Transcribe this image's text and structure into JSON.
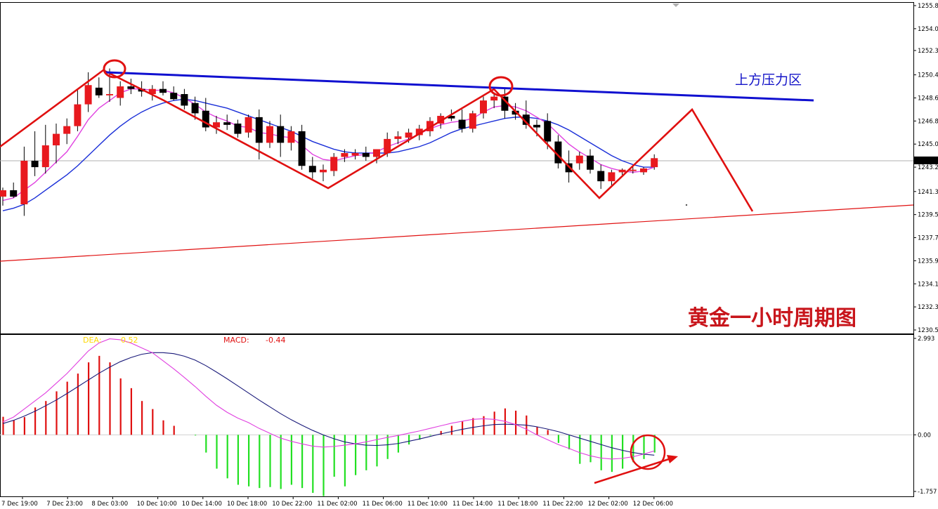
{
  "chart_data": {
    "type": "candlestick",
    "price_axis": {
      "ylim": [
        1230.5,
        1255.8
      ],
      "ticks": [
        "1255.8",
        "1254.0",
        "1252.3",
        "1250.4",
        "1248.6",
        "1246.8",
        "1245.0",
        "1243.2",
        "1241.3",
        "1239.5",
        "1237.7",
        "1235.9",
        "1234.1",
        "1232.3",
        "1230.5"
      ],
      "current_price": "1243.7"
    },
    "macd_axis": {
      "ylim": [
        -1.757,
        2.993
      ],
      "ticks": [
        "2.993",
        "0.00",
        "-1.757"
      ]
    },
    "time_labels": [
      "7 Dec 19:00",
      "7 Dec 23:00",
      "8 Dec 03:00",
      "10 Dec 10:00",
      "10 Dec 14:00",
      "10 Dec 18:00",
      "10 Dec 22:00",
      "11 Dec 02:00",
      "11 Dec 06:00",
      "11 Dec 10:00",
      "11 Dec 14:00",
      "11 Dec 18:00",
      "11 Dec 22:00",
      "12 Dec 02:00",
      "12 Dec 06:00"
    ],
    "candles": [
      {
        "o": 1240.9,
        "h": 1241.6,
        "l": 1240.2,
        "c": 1241.4
      },
      {
        "o": 1241.4,
        "h": 1242.0,
        "l": 1240.8,
        "c": 1240.9
      },
      {
        "o": 1240.3,
        "h": 1244.8,
        "l": 1239.4,
        "c": 1243.7
      },
      {
        "o": 1243.7,
        "h": 1246.0,
        "l": 1242.5,
        "c": 1243.2
      },
      {
        "o": 1243.2,
        "h": 1246.5,
        "l": 1242.7,
        "c": 1244.9
      },
      {
        "o": 1244.9,
        "h": 1246.6,
        "l": 1243.5,
        "c": 1245.8
      },
      {
        "o": 1245.8,
        "h": 1247.0,
        "l": 1245.0,
        "c": 1246.4
      },
      {
        "o": 1246.4,
        "h": 1249.2,
        "l": 1246.0,
        "c": 1248.1
      },
      {
        "o": 1248.1,
        "h": 1250.6,
        "l": 1247.5,
        "c": 1249.6
      },
      {
        "o": 1249.4,
        "h": 1250.2,
        "l": 1248.6,
        "c": 1248.8
      },
      {
        "o": 1248.8,
        "h": 1250.9,
        "l": 1248.3,
        "c": 1248.9
      },
      {
        "o": 1248.6,
        "h": 1249.9,
        "l": 1248.0,
        "c": 1249.5
      },
      {
        "o": 1249.5,
        "h": 1250.1,
        "l": 1248.9,
        "c": 1249.3
      },
      {
        "o": 1249.3,
        "h": 1249.9,
        "l": 1248.7,
        "c": 1249.1
      },
      {
        "o": 1248.9,
        "h": 1249.6,
        "l": 1248.4,
        "c": 1249.3
      },
      {
        "o": 1249.3,
        "h": 1249.9,
        "l": 1248.8,
        "c": 1249.0
      },
      {
        "o": 1249.0,
        "h": 1249.5,
        "l": 1248.4,
        "c": 1248.5
      },
      {
        "o": 1248.9,
        "h": 1249.3,
        "l": 1247.7,
        "c": 1248.0
      },
      {
        "o": 1248.2,
        "h": 1248.7,
        "l": 1246.9,
        "c": 1247.4
      },
      {
        "o": 1247.6,
        "h": 1248.6,
        "l": 1246.0,
        "c": 1246.3
      },
      {
        "o": 1246.3,
        "h": 1247.2,
        "l": 1245.8,
        "c": 1246.7
      },
      {
        "o": 1246.7,
        "h": 1247.3,
        "l": 1246.1,
        "c": 1246.5
      },
      {
        "o": 1246.6,
        "h": 1246.9,
        "l": 1245.5,
        "c": 1245.8
      },
      {
        "o": 1245.9,
        "h": 1247.3,
        "l": 1245.5,
        "c": 1247.1
      },
      {
        "o": 1247.1,
        "h": 1247.7,
        "l": 1243.8,
        "c": 1245.1
      },
      {
        "o": 1245.1,
        "h": 1246.8,
        "l": 1244.7,
        "c": 1246.4
      },
      {
        "o": 1246.4,
        "h": 1247.3,
        "l": 1244.0,
        "c": 1245.1
      },
      {
        "o": 1245.1,
        "h": 1246.4,
        "l": 1244.5,
        "c": 1246.0
      },
      {
        "o": 1246.0,
        "h": 1246.5,
        "l": 1243.0,
        "c": 1243.3
      },
      {
        "o": 1243.3,
        "h": 1244.0,
        "l": 1242.3,
        "c": 1242.8
      },
      {
        "o": 1242.8,
        "h": 1243.4,
        "l": 1242.1,
        "c": 1243.0
      },
      {
        "o": 1242.9,
        "h": 1244.3,
        "l": 1242.5,
        "c": 1244.0
      },
      {
        "o": 1244.0,
        "h": 1244.6,
        "l": 1243.6,
        "c": 1244.3
      },
      {
        "o": 1244.1,
        "h": 1244.6,
        "l": 1243.8,
        "c": 1244.3
      },
      {
        "o": 1244.3,
        "h": 1244.8,
        "l": 1243.7,
        "c": 1244.0
      },
      {
        "o": 1244.0,
        "h": 1244.6,
        "l": 1243.5,
        "c": 1244.6
      },
      {
        "o": 1244.3,
        "h": 1245.9,
        "l": 1244.0,
        "c": 1245.4
      },
      {
        "o": 1245.4,
        "h": 1246.0,
        "l": 1245.0,
        "c": 1245.6
      },
      {
        "o": 1245.5,
        "h": 1246.2,
        "l": 1245.1,
        "c": 1245.9
      },
      {
        "o": 1245.7,
        "h": 1246.5,
        "l": 1245.3,
        "c": 1246.2
      },
      {
        "o": 1246.0,
        "h": 1247.1,
        "l": 1245.6,
        "c": 1246.8
      },
      {
        "o": 1246.6,
        "h": 1247.4,
        "l": 1246.2,
        "c": 1247.2
      },
      {
        "o": 1247.2,
        "h": 1247.7,
        "l": 1246.8,
        "c": 1247.0
      },
      {
        "o": 1246.9,
        "h": 1247.7,
        "l": 1245.9,
        "c": 1246.2
      },
      {
        "o": 1246.2,
        "h": 1247.6,
        "l": 1245.9,
        "c": 1247.4
      },
      {
        "o": 1247.4,
        "h": 1248.7,
        "l": 1247.0,
        "c": 1248.4
      },
      {
        "o": 1248.4,
        "h": 1249.0,
        "l": 1247.8,
        "c": 1248.7
      },
      {
        "o": 1248.7,
        "h": 1249.3,
        "l": 1247.0,
        "c": 1247.6
      },
      {
        "o": 1247.6,
        "h": 1248.2,
        "l": 1246.9,
        "c": 1247.3
      },
      {
        "o": 1247.3,
        "h": 1248.4,
        "l": 1246.2,
        "c": 1246.5
      },
      {
        "o": 1246.5,
        "h": 1246.9,
        "l": 1245.6,
        "c": 1246.3
      },
      {
        "o": 1246.8,
        "h": 1247.4,
        "l": 1244.6,
        "c": 1245.2
      },
      {
        "o": 1245.2,
        "h": 1245.7,
        "l": 1243.1,
        "c": 1243.5
      },
      {
        "o": 1243.5,
        "h": 1244.5,
        "l": 1242.0,
        "c": 1242.8
      },
      {
        "o": 1243.5,
        "h": 1244.4,
        "l": 1243.0,
        "c": 1244.1
      },
      {
        "o": 1244.1,
        "h": 1244.6,
        "l": 1242.7,
        "c": 1243.0
      },
      {
        "o": 1242.9,
        "h": 1243.4,
        "l": 1241.5,
        "c": 1242.1
      },
      {
        "o": 1242.1,
        "h": 1243.0,
        "l": 1241.8,
        "c": 1242.8
      },
      {
        "o": 1242.8,
        "h": 1243.1,
        "l": 1242.6,
        "c": 1243.0
      },
      {
        "o": 1242.9,
        "h": 1243.2,
        "l": 1242.7,
        "c": 1243.0
      },
      {
        "o": 1242.8,
        "h": 1243.2,
        "l": 1242.6,
        "c": 1243.1
      },
      {
        "o": 1243.2,
        "h": 1244.2,
        "l": 1243.0,
        "c": 1243.9
      }
    ],
    "ma_fast": [
      1240.6,
      1240.8,
      1241.4,
      1242.0,
      1242.8,
      1243.6,
      1244.4,
      1245.6,
      1246.9,
      1247.8,
      1248.4,
      1249.0,
      1249.3,
      1249.3,
      1249.2,
      1249.2,
      1249.0,
      1248.6,
      1248.1,
      1247.5,
      1247.1,
      1246.8,
      1246.4,
      1246.3,
      1245.9,
      1245.8,
      1245.6,
      1245.5,
      1244.9,
      1244.2,
      1243.8,
      1243.7,
      1243.9,
      1244.1,
      1244.2,
      1244.4,
      1244.8,
      1245.1,
      1245.4,
      1245.8,
      1246.2,
      1246.5,
      1246.7,
      1246.8,
      1247.0,
      1247.5,
      1247.9,
      1248.0,
      1247.9,
      1247.6,
      1247.1,
      1246.6,
      1245.8,
      1245.0,
      1244.4,
      1243.9,
      1243.4,
      1243.1,
      1242.9,
      1242.8,
      1242.9,
      1243.2
    ],
    "ma_slow": [
      1239.8,
      1240.0,
      1240.3,
      1240.8,
      1241.4,
      1242.0,
      1242.6,
      1243.3,
      1244.1,
      1244.9,
      1245.7,
      1246.4,
      1247.0,
      1247.5,
      1247.9,
      1248.2,
      1248.4,
      1248.5,
      1248.4,
      1248.2,
      1248.0,
      1247.8,
      1247.5,
      1247.2,
      1246.9,
      1246.6,
      1246.3,
      1246.0,
      1245.6,
      1245.2,
      1244.9,
      1244.6,
      1244.4,
      1244.3,
      1244.3,
      1244.3,
      1244.3,
      1244.4,
      1244.6,
      1244.8,
      1245.1,
      1245.5,
      1245.9,
      1246.2,
      1246.4,
      1246.6,
      1246.8,
      1247.0,
      1247.1,
      1247.1,
      1247.0,
      1246.8,
      1246.5,
      1246.1,
      1245.6,
      1245.1,
      1244.6,
      1244.1,
      1243.7,
      1243.4,
      1243.2,
      1243.2
    ],
    "macd_hist": [
      0.56,
      0.45,
      0.55,
      0.85,
      1.05,
      1.35,
      1.65,
      1.9,
      2.25,
      2.45,
      2.25,
      1.75,
      1.45,
      1.05,
      0.8,
      0.45,
      0.28,
      0.0,
      -0.02,
      -0.55,
      -1.05,
      -1.35,
      -1.55,
      -1.6,
      -1.65,
      -1.62,
      -1.68,
      -1.55,
      -1.65,
      -1.8,
      -1.9,
      -1.3,
      -1.6,
      -1.25,
      -1.1,
      -0.98,
      -0.75,
      -0.55,
      -0.3,
      -0.15,
      -0.02,
      0.12,
      0.28,
      0.42,
      0.52,
      0.58,
      0.72,
      0.82,
      0.75,
      0.6,
      0.25,
      0.15,
      -0.25,
      -0.45,
      -0.9,
      -0.85,
      -1.1,
      -1.15,
      -1.05,
      -0.85,
      -0.75,
      -0.55
    ],
    "macd_signal": [
      0.35,
      0.45,
      0.58,
      0.73,
      0.9,
      1.08,
      1.28,
      1.49,
      1.7,
      1.91,
      2.1,
      2.27,
      2.4,
      2.5,
      2.55,
      2.55,
      2.52,
      2.44,
      2.32,
      2.15,
      1.95,
      1.74,
      1.52,
      1.3,
      1.08,
      0.87,
      0.66,
      0.47,
      0.3,
      0.14,
      0.0,
      -0.12,
      -0.22,
      -0.28,
      -0.32,
      -0.33,
      -0.31,
      -0.27,
      -0.2,
      -0.13,
      -0.05,
      0.03,
      0.1,
      0.17,
      0.23,
      0.28,
      0.32,
      0.33,
      0.32,
      0.3,
      0.25,
      0.18,
      0.1,
      0.0,
      -0.1,
      -0.2,
      -0.3,
      -0.4,
      -0.48,
      -0.55,
      -0.6,
      -0.63
    ],
    "macd_line": [
      0.4,
      0.55,
      0.8,
      1.05,
      1.3,
      1.6,
      1.9,
      2.25,
      2.6,
      2.85,
      2.98,
      2.95,
      2.85,
      2.7,
      2.55,
      2.3,
      2.05,
      1.78,
      1.5,
      1.2,
      0.92,
      0.7,
      0.52,
      0.38,
      0.2,
      0.05,
      -0.1,
      -0.2,
      -0.28,
      -0.35,
      -0.38,
      -0.36,
      -0.32,
      -0.28,
      -0.22,
      -0.15,
      -0.08,
      -0.02,
      0.05,
      0.12,
      0.2,
      0.28,
      0.36,
      0.42,
      0.48,
      0.5,
      0.48,
      0.42,
      0.32,
      0.18,
      0.0,
      -0.15,
      -0.3,
      -0.42,
      -0.55,
      -0.65,
      -0.72,
      -0.75,
      -0.73,
      -0.68,
      -0.6,
      -0.5
    ],
    "indicators": {
      "dea_label": "DEA:",
      "dea_value": "0.52",
      "macd_label": "MACD:",
      "macd_value": "-0.44"
    },
    "annotations": {
      "resistance_label": "上方压力区",
      "watermark": "黄金一小时周期图"
    },
    "colors": {
      "bull": "#e8191e",
      "bear": "#000000",
      "ma_fast": "#e040e0",
      "ma_slow": "#1a2fd8",
      "trend_red": "#e01010",
      "trend_blue": "#1010d0",
      "hist_pos": "#e01010",
      "hist_neg": "#22e022",
      "dea": "#ffd800",
      "macd_text": "#e01010"
    }
  }
}
